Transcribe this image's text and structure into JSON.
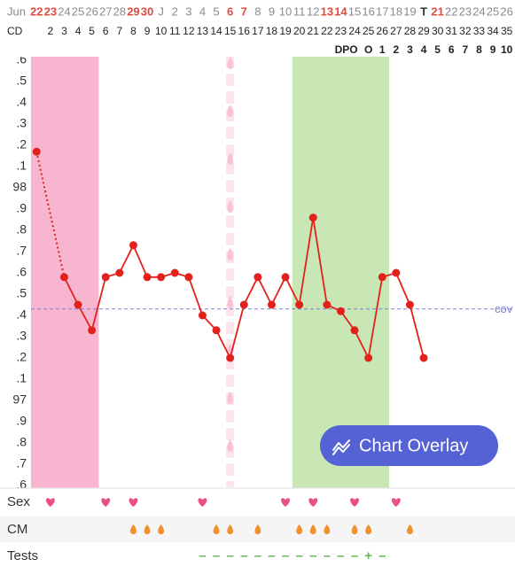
{
  "header": {
    "month": "Jun",
    "cd_label": "CD",
    "dpo_label": "DPO"
  },
  "rows": {
    "sex": "Sex",
    "cm": "CM",
    "tests": "Tests"
  },
  "button": {
    "label": "Chart Overlay"
  },
  "chart_data": {
    "type": "line",
    "x": [
      1,
      2,
      3,
      4,
      5,
      6,
      7,
      8,
      9,
      10,
      11,
      12,
      13,
      14,
      15,
      16,
      17,
      18,
      19,
      20,
      21,
      22,
      23,
      24,
      25,
      26,
      27,
      28,
      29,
      30,
      31,
      32,
      33,
      34,
      35
    ],
    "dates": [
      "22",
      "23",
      "24",
      "25",
      "26",
      "27",
      "28",
      "29",
      "30",
      "J",
      "2",
      "3",
      "4",
      "5",
      "6",
      "7",
      "8",
      "9",
      "10",
      "11",
      "12",
      "13",
      "14",
      "15",
      "16",
      "17",
      "18",
      "19",
      "T",
      "21",
      "22",
      "23",
      "24",
      "25",
      "26"
    ],
    "date_colors": [
      "#e04b3f",
      "#e04b3f",
      "#8a8a8a",
      "#8a8a8a",
      "#8a8a8a",
      "#8a8a8a",
      "#8a8a8a",
      "#e04b3f",
      "#e04b3f",
      "#8a8a8a",
      "#8a8a8a",
      "#8a8a8a",
      "#8a8a8a",
      "#8a8a8a",
      "#e04b3f",
      "#e04b3f",
      "#8a8a8a",
      "#8a8a8a",
      "#8a8a8a",
      "#8a8a8a",
      "#8a8a8a",
      "#e04b3f",
      "#e04b3f",
      "#8a8a8a",
      "#8a8a8a",
      "#8a8a8a",
      "#8a8a8a",
      "#8a8a8a",
      "#333333",
      "#e04b3f",
      "#8a8a8a",
      "#8a8a8a",
      "#8a8a8a",
      "#8a8a8a",
      "#8a8a8a"
    ],
    "xticks": [
      2,
      3,
      4,
      5,
      6,
      7,
      8,
      9,
      10,
      11,
      12,
      13,
      14,
      15,
      16,
      17,
      18,
      19,
      20,
      21,
      22,
      23,
      24,
      25,
      26,
      27,
      28,
      29,
      30,
      31,
      32,
      33,
      34,
      35
    ],
    "xlim": [
      0.6,
      35.6
    ],
    "dpo": [
      null,
      null,
      null,
      null,
      null,
      null,
      null,
      null,
      null,
      null,
      null,
      null,
      null,
      null,
      null,
      null,
      null,
      null,
      null,
      null,
      null,
      null,
      null,
      null,
      "O",
      1,
      2,
      3,
      4,
      5,
      6,
      7,
      8,
      9,
      10
    ],
    "values": [
      98.17,
      null,
      97.58,
      97.45,
      97.33,
      97.58,
      97.6,
      97.73,
      97.58,
      97.58,
      97.6,
      97.58,
      97.4,
      97.33,
      97.2,
      97.45,
      97.58,
      97.45,
      97.58,
      97.45,
      97.86,
      97.45,
      97.42,
      97.33,
      97.2,
      97.58,
      97.6,
      97.45,
      97.2,
      null,
      null,
      null,
      null,
      null,
      null
    ],
    "color": "#e3211c",
    "ylim": [
      96.6,
      98.6
    ],
    "yticks": [
      {
        "value": 96.6,
        "label": ".6"
      },
      {
        "value": 96.7,
        "label": ".7"
      },
      {
        "value": 96.8,
        "label": ".8"
      },
      {
        "value": 96.9,
        "label": ".9"
      },
      97,
      {
        "value": 97.1,
        "label": ".1"
      },
      {
        "value": 97.2,
        "label": ".2"
      },
      {
        "value": 97.3,
        "label": ".3"
      },
      {
        "value": 97.4,
        "label": ".4"
      },
      {
        "value": 97.5,
        "label": ".5"
      },
      {
        "value": 97.6,
        "label": ".6"
      },
      {
        "value": 97.7,
        "label": ".7"
      },
      {
        "value": 97.8,
        "label": ".8"
      },
      {
        "value": 97.9,
        "label": ".9"
      },
      98,
      {
        "value": 98.1,
        "label": ".1"
      },
      {
        "value": 98.2,
        "label": ".2"
      },
      {
        "value": 98.3,
        "label": ".3"
      },
      {
        "value": 98.4,
        "label": ".4"
      },
      {
        "value": 98.5,
        "label": ".5"
      },
      {
        "value": 98.6,
        "label": ".6"
      }
    ],
    "grid": false,
    "coverline": 97.43,
    "coverline_label": "cov",
    "coverline_color": "#7b80d6",
    "period": [
      1,
      5
    ],
    "period_color": "#f7b5cf",
    "fertile": [
      20,
      26
    ],
    "fertile_color": "#c9e7b5",
    "drops_day": 15,
    "sex": [
      2,
      6,
      8,
      13,
      19,
      21,
      24,
      27
    ],
    "sex_color": "#e8508a",
    "cm": [
      8,
      9,
      10,
      14,
      15,
      17,
      20,
      21,
      22,
      24,
      25,
      28
    ],
    "cm_color": "#f2902b",
    "tests": {
      "x": [
        13,
        14,
        15,
        16,
        17,
        18,
        19,
        20,
        21,
        22,
        23,
        24,
        25,
        26
      ],
      "results": [
        "–",
        "–",
        "–",
        "–",
        "–",
        "–",
        "–",
        "–",
        "–",
        "–",
        "–",
        "–",
        "+",
        "–"
      ]
    },
    "tests_color": "#5cbf4a"
  }
}
